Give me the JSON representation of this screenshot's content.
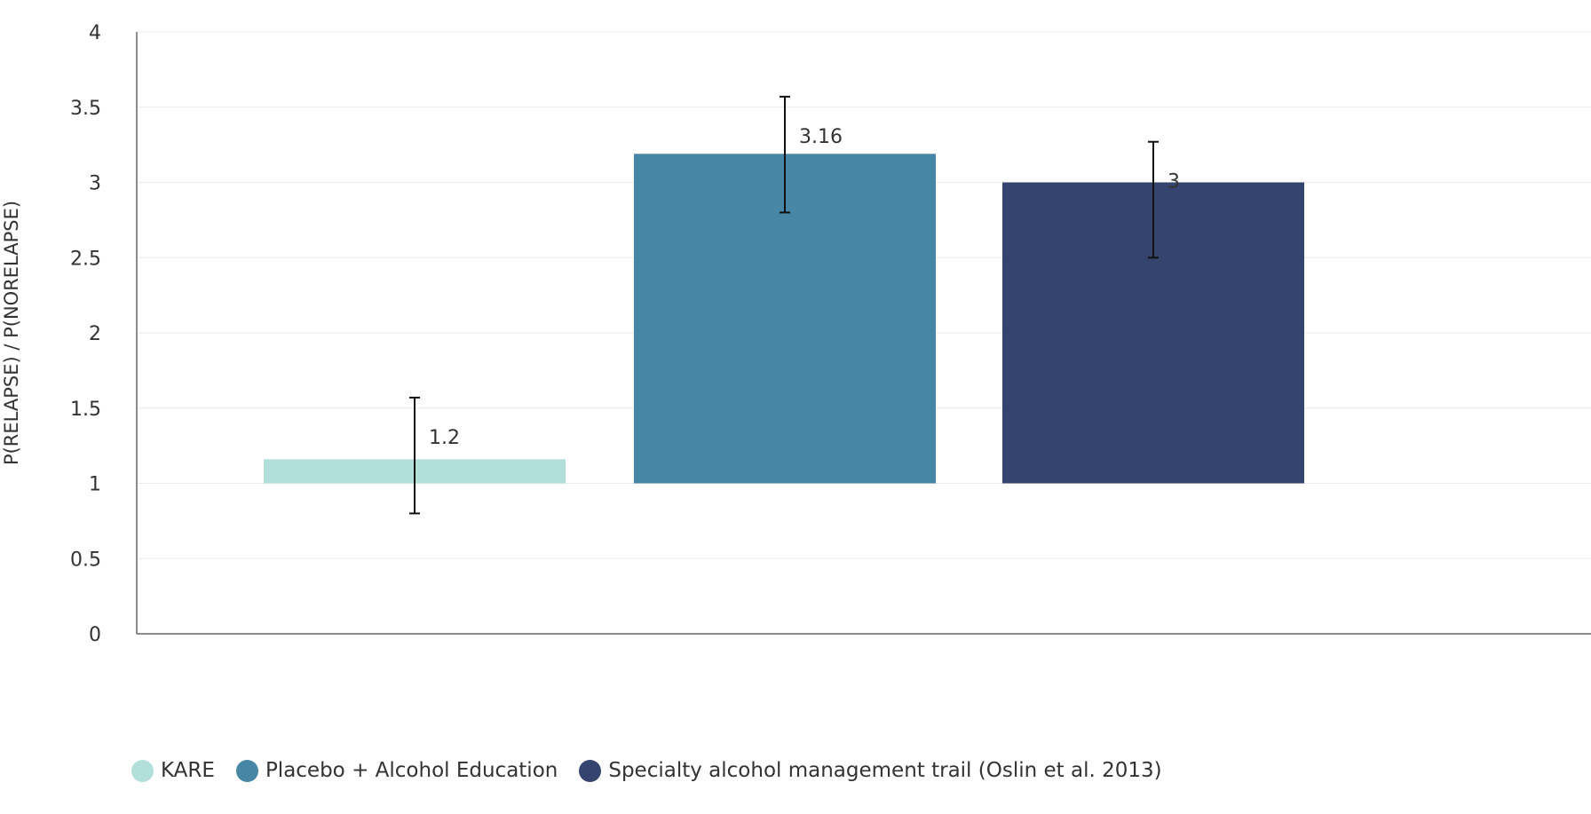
{
  "chart_data": {
    "type": "bar",
    "categories": [
      "KARE",
      "Placebo + Alcohol Education",
      "Specialty alcohol management trail (Oslin et al. 2013)"
    ],
    "values": [
      1.2,
      3.16,
      3
    ],
    "display_heights": [
      1.16,
      3.19,
      3.0
    ],
    "error_bars": [
      {
        "low": 0.8,
        "high": 1.57
      },
      {
        "low": 2.8,
        "high": 3.57
      },
      {
        "low": 2.5,
        "high": 3.27
      }
    ],
    "data_labels": [
      "1.2",
      "3.16",
      "3"
    ],
    "colors": [
      "#b3dfdb",
      "#4787a5",
      "#35446e"
    ],
    "baseline": 1,
    "ylabel": "P(RELAPSE) / P(NORELAPSE)",
    "xlabel": "",
    "ylim": [
      0,
      4
    ],
    "yticks": [
      0,
      0.5,
      1,
      1.5,
      2,
      2.5,
      3,
      3.5,
      4
    ],
    "ytick_labels": [
      "0",
      "0.5",
      "1",
      "1.5",
      "2",
      "2.5",
      "3",
      "3.5",
      "4"
    ],
    "grid": true,
    "legend_position": "bottom-left"
  }
}
